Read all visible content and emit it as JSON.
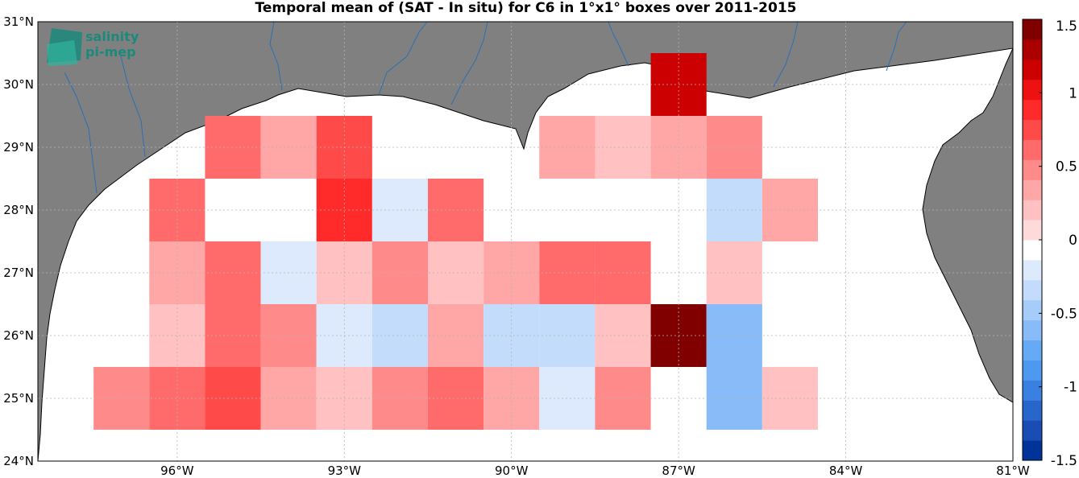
{
  "title": "Temporal mean of (SAT - In situ) for C6 in 1°x1° boxes over 2011-2015",
  "logo": {
    "line1": "salinity",
    "line2": "pi-mep",
    "icon": "salinity-logo-icon"
  },
  "colors": {
    "land": "#808080",
    "ocean": "#ffffff",
    "rivers": "#2a6fb5",
    "coast": "#000000",
    "grid": "#b4b4b4"
  },
  "chart_data": {
    "type": "heatmap",
    "title": "Temporal mean of (SAT - In situ) for C6 in 1°x1° boxes over 2011-2015",
    "xlabel": "",
    "ylabel": "",
    "xlim": [
      -98.5,
      -81
    ],
    "ylim": [
      24,
      31
    ],
    "grid": true,
    "xticks": [
      -96,
      -93,
      -90,
      -87,
      -84,
      -81
    ],
    "xtick_labels": [
      "96°W",
      "93°W",
      "90°W",
      "87°W",
      "84°W",
      "81°W"
    ],
    "yticks": [
      24,
      25,
      26,
      27,
      28,
      29,
      30,
      31
    ],
    "ytick_labels": [
      "24°N",
      "25°N",
      "26°N",
      "27°N",
      "28°N",
      "29°N",
      "30°N",
      "31°N"
    ],
    "colorbar": {
      "range": [
        -1.5,
        1.5
      ],
      "ticks": [
        1.5,
        1,
        0.5,
        0,
        -0.5,
        -1,
        -1.5
      ],
      "tick_labels": [
        "1.5",
        "1",
        "0.5",
        "0",
        "-0.5",
        "-1",
        "-1.5"
      ],
      "levels": [
        "#003399",
        "#1a4db3",
        "#2966cc",
        "#3a80e0",
        "#4d99f0",
        "#66aaf5",
        "#88bbf8",
        "#a6ccfa",
        "#c4dcfc",
        "#dde9fd",
        "#ffffff",
        "#ffdada",
        "#ffc1c1",
        "#ffa6a6",
        "#ff8a8a",
        "#ff6b6b",
        "#ff4a4a",
        "#ff2a2a",
        "#ee1111",
        "#cc0000",
        "#aa0000",
        "#800000"
      ]
    },
    "cells": [
      {
        "lon": -87,
        "lat": 30,
        "value": 1.1
      },
      {
        "lon": -95,
        "lat": 29,
        "value": 0.55
      },
      {
        "lon": -94,
        "lat": 29,
        "value": 0.3
      },
      {
        "lon": -93,
        "lat": 29,
        "value": 0.8
      },
      {
        "lon": -89,
        "lat": 29,
        "value": 0.3
      },
      {
        "lon": -88,
        "lat": 29,
        "value": 0.15
      },
      {
        "lon": -87,
        "lat": 29,
        "value": 0.3
      },
      {
        "lon": -86,
        "lat": 29,
        "value": 0.45
      },
      {
        "lon": -96,
        "lat": 28,
        "value": 0.65
      },
      {
        "lon": -93,
        "lat": 28,
        "value": 0.9
      },
      {
        "lon": -92,
        "lat": 28,
        "value": -0.25
      },
      {
        "lon": -91,
        "lat": 28,
        "value": 0.55
      },
      {
        "lon": -86,
        "lat": 28,
        "value": -0.35
      },
      {
        "lon": -85,
        "lat": 28,
        "value": 0.3
      },
      {
        "lon": -96,
        "lat": 27,
        "value": 0.3
      },
      {
        "lon": -95,
        "lat": 27,
        "value": 0.55
      },
      {
        "lon": -94,
        "lat": 27,
        "value": -0.25
      },
      {
        "lon": -93,
        "lat": 27,
        "value": 0.15
      },
      {
        "lon": -92,
        "lat": 27,
        "value": 0.45
      },
      {
        "lon": -91,
        "lat": 27,
        "value": 0.15
      },
      {
        "lon": -90,
        "lat": 27,
        "value": 0.3
      },
      {
        "lon": -89,
        "lat": 27,
        "value": 0.55
      },
      {
        "lon": -88,
        "lat": 27,
        "value": 0.55
      },
      {
        "lon": -86,
        "lat": 27,
        "value": 0.15
      },
      {
        "lon": -96,
        "lat": 26,
        "value": 0.15
      },
      {
        "lon": -95,
        "lat": 26,
        "value": 0.65
      },
      {
        "lon": -94,
        "lat": 26,
        "value": 0.45
      },
      {
        "lon": -93,
        "lat": 26,
        "value": -0.15
      },
      {
        "lon": -92,
        "lat": 26,
        "value": -0.35
      },
      {
        "lon": -91,
        "lat": 26,
        "value": 0.3
      },
      {
        "lon": -90,
        "lat": 26,
        "value": -0.35
      },
      {
        "lon": -89,
        "lat": 26,
        "value": -0.35
      },
      {
        "lon": -88,
        "lat": 26,
        "value": 0.15
      },
      {
        "lon": -87,
        "lat": 26,
        "value": 1.5
      },
      {
        "lon": -86,
        "lat": 26,
        "value": -0.55
      },
      {
        "lon": -97,
        "lat": 25,
        "value": 0.45
      },
      {
        "lon": -96,
        "lat": 25,
        "value": 0.65
      },
      {
        "lon": -95,
        "lat": 25,
        "value": 0.8
      },
      {
        "lon": -94,
        "lat": 25,
        "value": 0.3
      },
      {
        "lon": -93,
        "lat": 25,
        "value": 0.15
      },
      {
        "lon": -92,
        "lat": 25,
        "value": 0.45
      },
      {
        "lon": -91,
        "lat": 25,
        "value": 0.55
      },
      {
        "lon": -90,
        "lat": 25,
        "value": 0.3
      },
      {
        "lon": -89,
        "lat": 25,
        "value": -0.25
      },
      {
        "lon": -88,
        "lat": 25,
        "value": 0.45
      },
      {
        "lon": -86,
        "lat": 25,
        "value": -0.65
      },
      {
        "lon": -85,
        "lat": 25,
        "value": 0.15
      }
    ]
  }
}
